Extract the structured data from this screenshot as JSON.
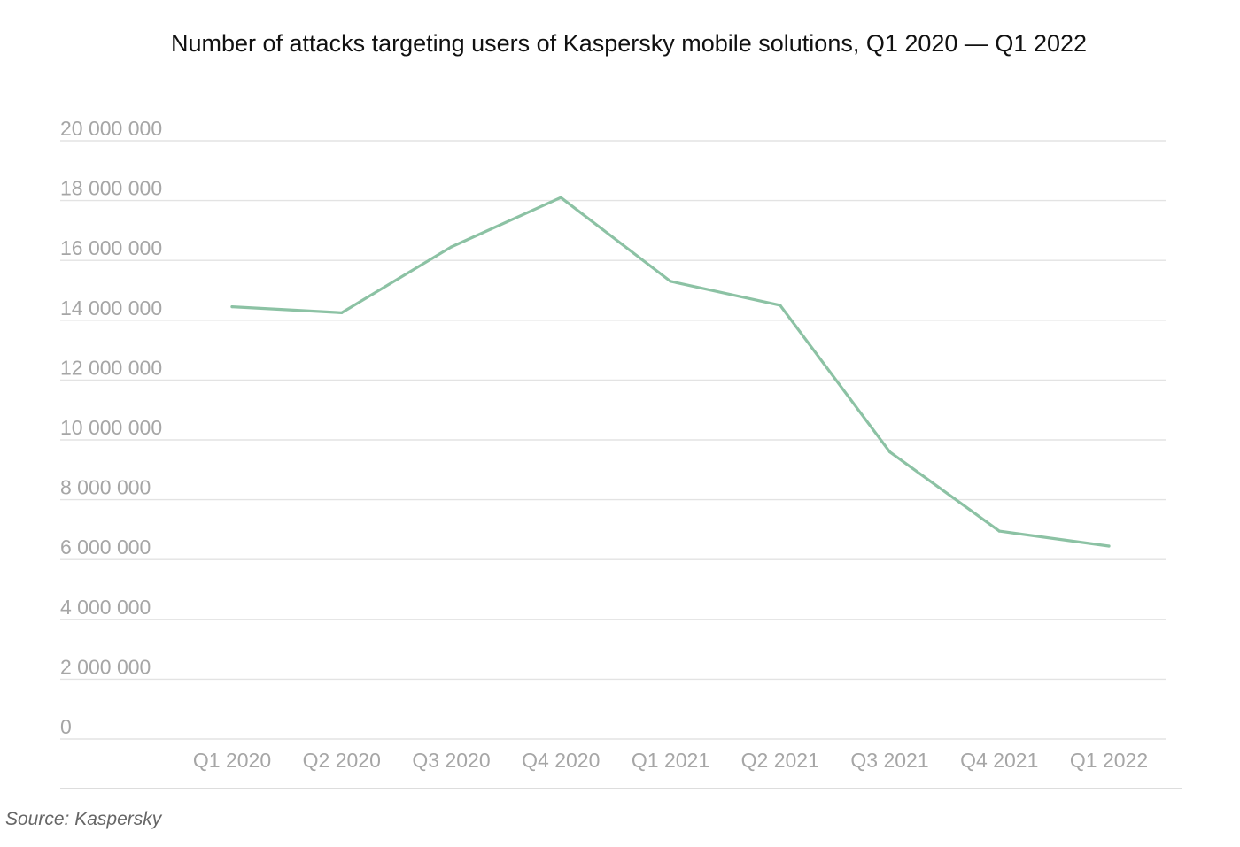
{
  "chart_data": {
    "type": "line",
    "title": "Number of attacks targeting users of Kaspersky mobile solutions, Q1 2020 — Q1 2022",
    "xlabel": "",
    "ylabel": "",
    "categories": [
      "Q1 2020",
      "Q2 2020",
      "Q3 2020",
      "Q4 2020",
      "Q1 2021",
      "Q2 2021",
      "Q3 2021",
      "Q4 2021",
      "Q1 2022"
    ],
    "series": [
      {
        "values": [
          14450000,
          14250000,
          16450000,
          18100000,
          15300000,
          14500000,
          9600000,
          6950000,
          6450000
        ]
      }
    ],
    "ylim": [
      0,
      20000000
    ],
    "yticks": [
      0,
      2000000,
      4000000,
      6000000,
      8000000,
      10000000,
      12000000,
      14000000,
      16000000,
      18000000,
      20000000
    ],
    "ytick_labels": [
      "0",
      "2 000 000",
      "4 000 000",
      "6 000 000",
      "8 000 000",
      "10 000 000",
      "12 000 000",
      "14 000 000",
      "16 000 000",
      "18 000 000",
      "20 000 000"
    ],
    "grid": true,
    "legend": "none",
    "colors": {
      "line": "#8cc2a4",
      "grid": "#e3e3e3",
      "tick_text": "#a6a6a6",
      "title_text": "#111111"
    }
  },
  "footer": {
    "source": "Source: Kaspersky"
  }
}
